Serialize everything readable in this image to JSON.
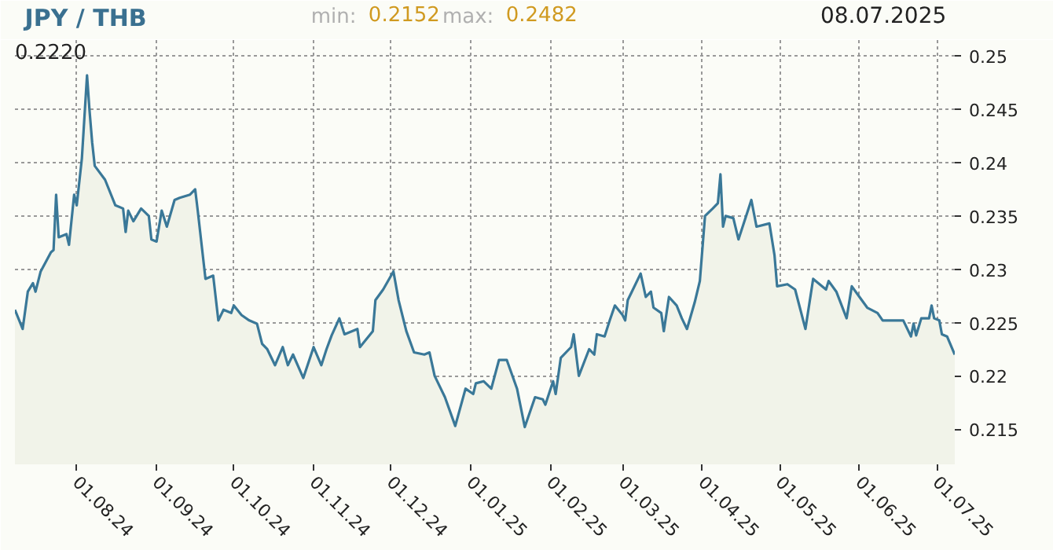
{
  "chart_data": {
    "type": "area",
    "title": "JPY / THB",
    "annotations": [
      "min: 0.2152",
      "max: 0.2482",
      "08.07.2025",
      "0.2220"
    ],
    "x": [
      "2024-07-08",
      "2024-07-11",
      "2024-07-13",
      "2024-07-15",
      "2024-07-16",
      "2024-07-18",
      "2024-07-22",
      "2024-07-23",
      "2024-07-24",
      "2024-07-25",
      "2024-07-28",
      "2024-07-29",
      "2024-07-31",
      "2024-08-01",
      "2024-08-03",
      "2024-08-05",
      "2024-08-06",
      "2024-08-07",
      "2024-08-08",
      "2024-08-12",
      "2024-08-16",
      "2024-08-19",
      "2024-08-20",
      "2024-08-21",
      "2024-08-23",
      "2024-08-26",
      "2024-08-29",
      "2024-08-30",
      "2024-09-01",
      "2024-09-03",
      "2024-09-05",
      "2024-09-08",
      "2024-09-10",
      "2024-09-14",
      "2024-09-16",
      "2024-09-17",
      "2024-09-20",
      "2024-09-23",
      "2024-09-25",
      "2024-09-27",
      "2024-09-30",
      "2024-10-01",
      "2024-10-04",
      "2024-10-07",
      "2024-10-10",
      "2024-10-12",
      "2024-10-14",
      "2024-10-17",
      "2024-10-20",
      "2024-10-22",
      "2024-10-24",
      "2024-10-28",
      "2024-11-01",
      "2024-11-04",
      "2024-11-06",
      "2024-11-08",
      "2024-11-11",
      "2024-11-13",
      "2024-11-18",
      "2024-11-19",
      "2024-11-24",
      "2024-11-25",
      "2024-11-28",
      "2024-12-02",
      "2024-12-04",
      "2024-12-07",
      "2024-12-10",
      "2024-12-14",
      "2024-12-16",
      "2024-12-18",
      "2024-12-22",
      "2024-12-26",
      "2024-12-30",
      "2025-01-02",
      "2025-01-03",
      "2025-01-06",
      "2025-01-09",
      "2025-01-12",
      "2025-01-15",
      "2025-01-19",
      "2025-01-22",
      "2025-01-26",
      "2025-01-29",
      "2025-01-30",
      "2025-02-02",
      "2025-02-03",
      "2025-02-05",
      "2025-02-09",
      "2025-02-10",
      "2025-02-12",
      "2025-02-16",
      "2025-02-18",
      "2025-02-19",
      "2025-02-22",
      "2025-02-24",
      "2025-02-26",
      "2025-03-01",
      "2025-03-02",
      "2025-03-03",
      "2025-03-05",
      "2025-03-08",
      "2025-03-10",
      "2025-03-12",
      "2025-03-13",
      "2025-03-16",
      "2025-03-17",
      "2025-03-19",
      "2025-03-22",
      "2025-03-24",
      "2025-03-26",
      "2025-03-29",
      "2025-03-31",
      "2025-04-02",
      "2025-04-05",
      "2025-04-07",
      "2025-04-08",
      "2025-04-09",
      "2025-04-10",
      "2025-04-13",
      "2025-04-15",
      "2025-04-20",
      "2025-04-22",
      "2025-04-27",
      "2025-04-29",
      "2025-04-30",
      "2025-05-04",
      "2025-05-07",
      "2025-05-11",
      "2025-05-14",
      "2025-05-19",
      "2025-05-20",
      "2025-05-23",
      "2025-05-27",
      "2025-05-29",
      "2025-06-01",
      "2025-06-04",
      "2025-06-08",
      "2025-06-10",
      "2025-06-18",
      "2025-06-21",
      "2025-06-22",
      "2025-06-23",
      "2025-06-25",
      "2025-06-28",
      "2025-06-29",
      "2025-06-30",
      "2025-07-02",
      "2025-07-03",
      "2025-07-05",
      "2025-07-08"
    ],
    "series": [
      {
        "color": "#3a7898",
        "values": [
          0.2262,
          0.2244,
          0.2279,
          0.2287,
          0.2279,
          0.2298,
          0.2316,
          0.2318,
          0.237,
          0.233,
          0.2333,
          0.2323,
          0.237,
          0.236,
          0.2404,
          0.2482,
          0.2448,
          0.2419,
          0.2397,
          0.2384,
          0.236,
          0.2357,
          0.2335,
          0.2355,
          0.2345,
          0.2357,
          0.235,
          0.2328,
          0.2326,
          0.2355,
          0.234,
          0.2365,
          0.2367,
          0.237,
          0.2375,
          0.2355,
          0.2291,
          0.2294,
          0.2252,
          0.2262,
          0.2259,
          0.2266,
          0.2257,
          0.2252,
          0.2249,
          0.223,
          0.2225,
          0.221,
          0.2227,
          0.221,
          0.222,
          0.2198,
          0.2227,
          0.221,
          0.2225,
          0.2238,
          0.2254,
          0.2239,
          0.2244,
          0.2227,
          0.2242,
          0.2271,
          0.2281,
          0.2298,
          0.2271,
          0.2242,
          0.2222,
          0.222,
          0.2222,
          0.22,
          0.218,
          0.2153,
          0.2188,
          0.2183,
          0.2193,
          0.2195,
          0.2188,
          0.2215,
          0.2215,
          0.2188,
          0.2152,
          0.218,
          0.2178,
          0.2173,
          0.2195,
          0.2183,
          0.2217,
          0.2227,
          0.2239,
          0.22,
          0.2225,
          0.222,
          0.2239,
          0.2237,
          0.2252,
          0.2266,
          0.2257,
          0.2252,
          0.2271,
          0.2281,
          0.2296,
          0.2274,
          0.2279,
          0.2264,
          0.2259,
          0.2242,
          0.2274,
          0.2266,
          0.2254,
          0.2244,
          0.2269,
          0.2289,
          0.235,
          0.2357,
          0.2362,
          0.2389,
          0.234,
          0.235,
          0.2348,
          0.2328,
          0.2365,
          0.234,
          0.2343,
          0.2313,
          0.2284,
          0.2286,
          0.2281,
          0.2244,
          0.2291,
          0.2281,
          0.2289,
          0.2279,
          0.2254,
          0.2284,
          0.2274,
          0.2264,
          0.2259,
          0.2252,
          0.2252,
          0.2237,
          0.2249,
          0.2238,
          0.2254,
          0.2254,
          0.2266,
          0.2254,
          0.2252,
          0.2239,
          0.2237,
          0.222
        ]
      }
    ],
    "xlim": [
      "2024-07-08",
      "2025-07-08"
    ],
    "xticks": [
      {
        "value": "2024-08-01",
        "label": "01.08.24"
      },
      {
        "value": "2024-09-01",
        "label": "01.09.24"
      },
      {
        "value": "2024-10-01",
        "label": "01.10.24"
      },
      {
        "value": "2024-11-01",
        "label": "01.11.24"
      },
      {
        "value": "2024-12-01",
        "label": "01.12.24"
      },
      {
        "value": "2025-01-01",
        "label": "01.01.25"
      },
      {
        "value": "2025-02-01",
        "label": "01.02.25"
      },
      {
        "value": "2025-03-01",
        "label": "01.03.25"
      },
      {
        "value": "2025-04-01",
        "label": "01.04.25"
      },
      {
        "value": "2025-05-01",
        "label": "01.05.25"
      },
      {
        "value": "2025-06-01",
        "label": "01.06.25"
      },
      {
        "value": "2025-07-01",
        "label": "01.07.25"
      }
    ],
    "ylim": [
      0.2117,
      0.2515
    ],
    "yticks": [
      0.215,
      0.22,
      0.225,
      0.23,
      0.235,
      0.24,
      0.245,
      0.25
    ],
    "grid": true,
    "marker": "none",
    "line_style": "solid"
  }
}
